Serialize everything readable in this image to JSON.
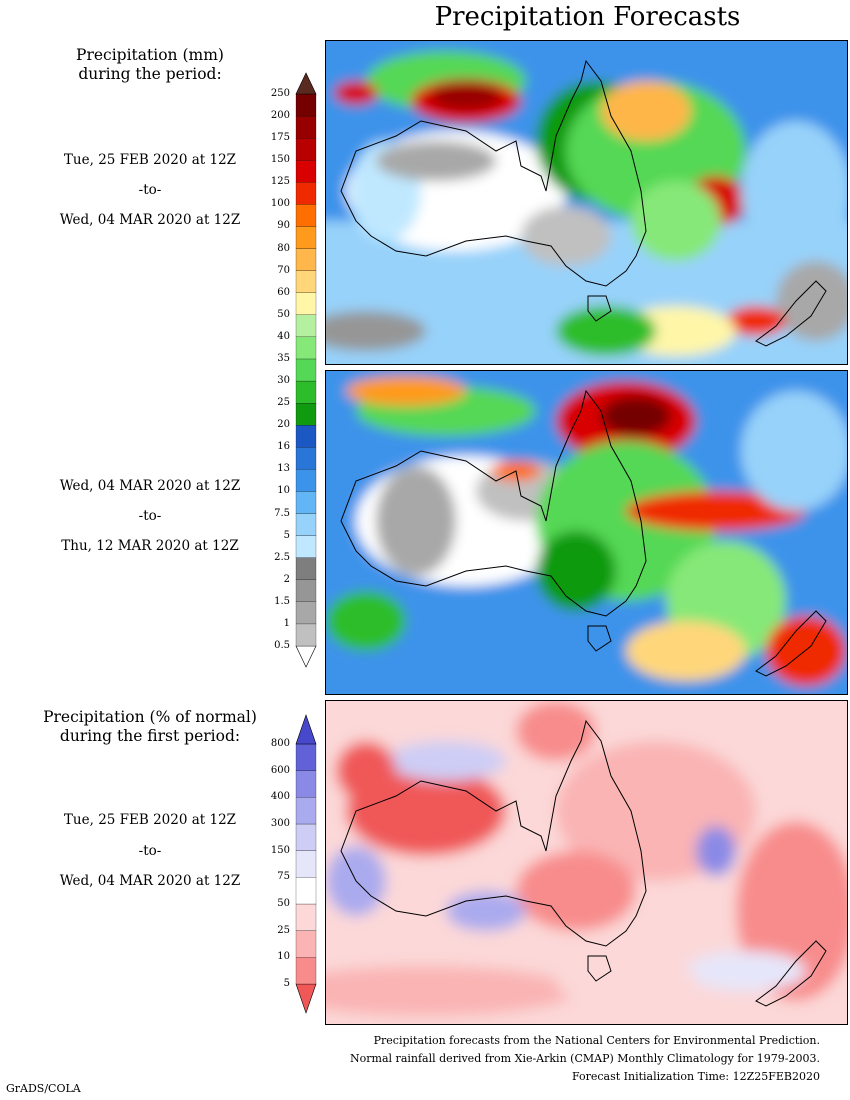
{
  "title": "Precipitation Forecasts",
  "amount_legend": {
    "heading_line1": "Precipitation (mm)",
    "heading_line2": "during the period:",
    "levels": [
      "0.5",
      "1",
      "1.5",
      "2",
      "2.5",
      "5",
      "7.5",
      "10",
      "13",
      "16",
      "20",
      "25",
      "30",
      "35",
      "40",
      "50",
      "60",
      "70",
      "80",
      "90",
      "100",
      "125",
      "150",
      "175",
      "200",
      "250"
    ],
    "colors": [
      "#c0c0c0",
      "#a8a8a8",
      "#969696",
      "#7e7e7e",
      "#bfe8ff",
      "#97d2fa",
      "#63b6f5",
      "#3c93ea",
      "#2a76d8",
      "#1c58c4",
      "#109a10",
      "#2ebd2a",
      "#55d855",
      "#86e878",
      "#b4f0a0",
      "#fff6a8",
      "#ffd77a",
      "#ffb64a",
      "#ff9a1c",
      "#ff6e00",
      "#f02a00",
      "#d80000",
      "#b80000",
      "#980000",
      "#740000",
      "#5a2a20"
    ]
  },
  "anomaly_legend": {
    "heading_line1": "Precipitation (% of normal)",
    "heading_line2": "during the first period:",
    "levels": [
      "5",
      "10",
      "25",
      "50",
      "75",
      "150",
      "300",
      "400",
      "600",
      "800"
    ],
    "colors": [
      "#f05858",
      "#f88c8c",
      "#fab4b4",
      "#fcd8d8",
      "#ffffff",
      "#e6e6fa",
      "#cdcdf5",
      "#aaaaee",
      "#8a8ae6",
      "#6262d8",
      "#4848cc"
    ]
  },
  "periods": [
    {
      "start": "Tue, 25 FEB 2020 at 12Z",
      "to": "-to-",
      "end": "Wed, 04 MAR 2020 at 12Z"
    },
    {
      "start": "Wed, 04 MAR 2020 at 12Z",
      "to": "-to-",
      "end": "Thu, 12 MAR 2020 at 12Z"
    },
    {
      "start": "Tue, 25 FEB 2020 at 12Z",
      "to": "-to-",
      "end": "Wed, 04 MAR 2020 at 12Z"
    }
  ],
  "footer": {
    "line1": "Precipitation forecasts from the National Centers for Environmental Prediction.",
    "line2": "Normal rainfall derived from Xie-Arkin (CMAP) Monthly Climatology for 1979-2003.",
    "line3": "Forecast Initialization Time: 12Z25FEB2020"
  },
  "credit": "GrADS/COLA"
}
